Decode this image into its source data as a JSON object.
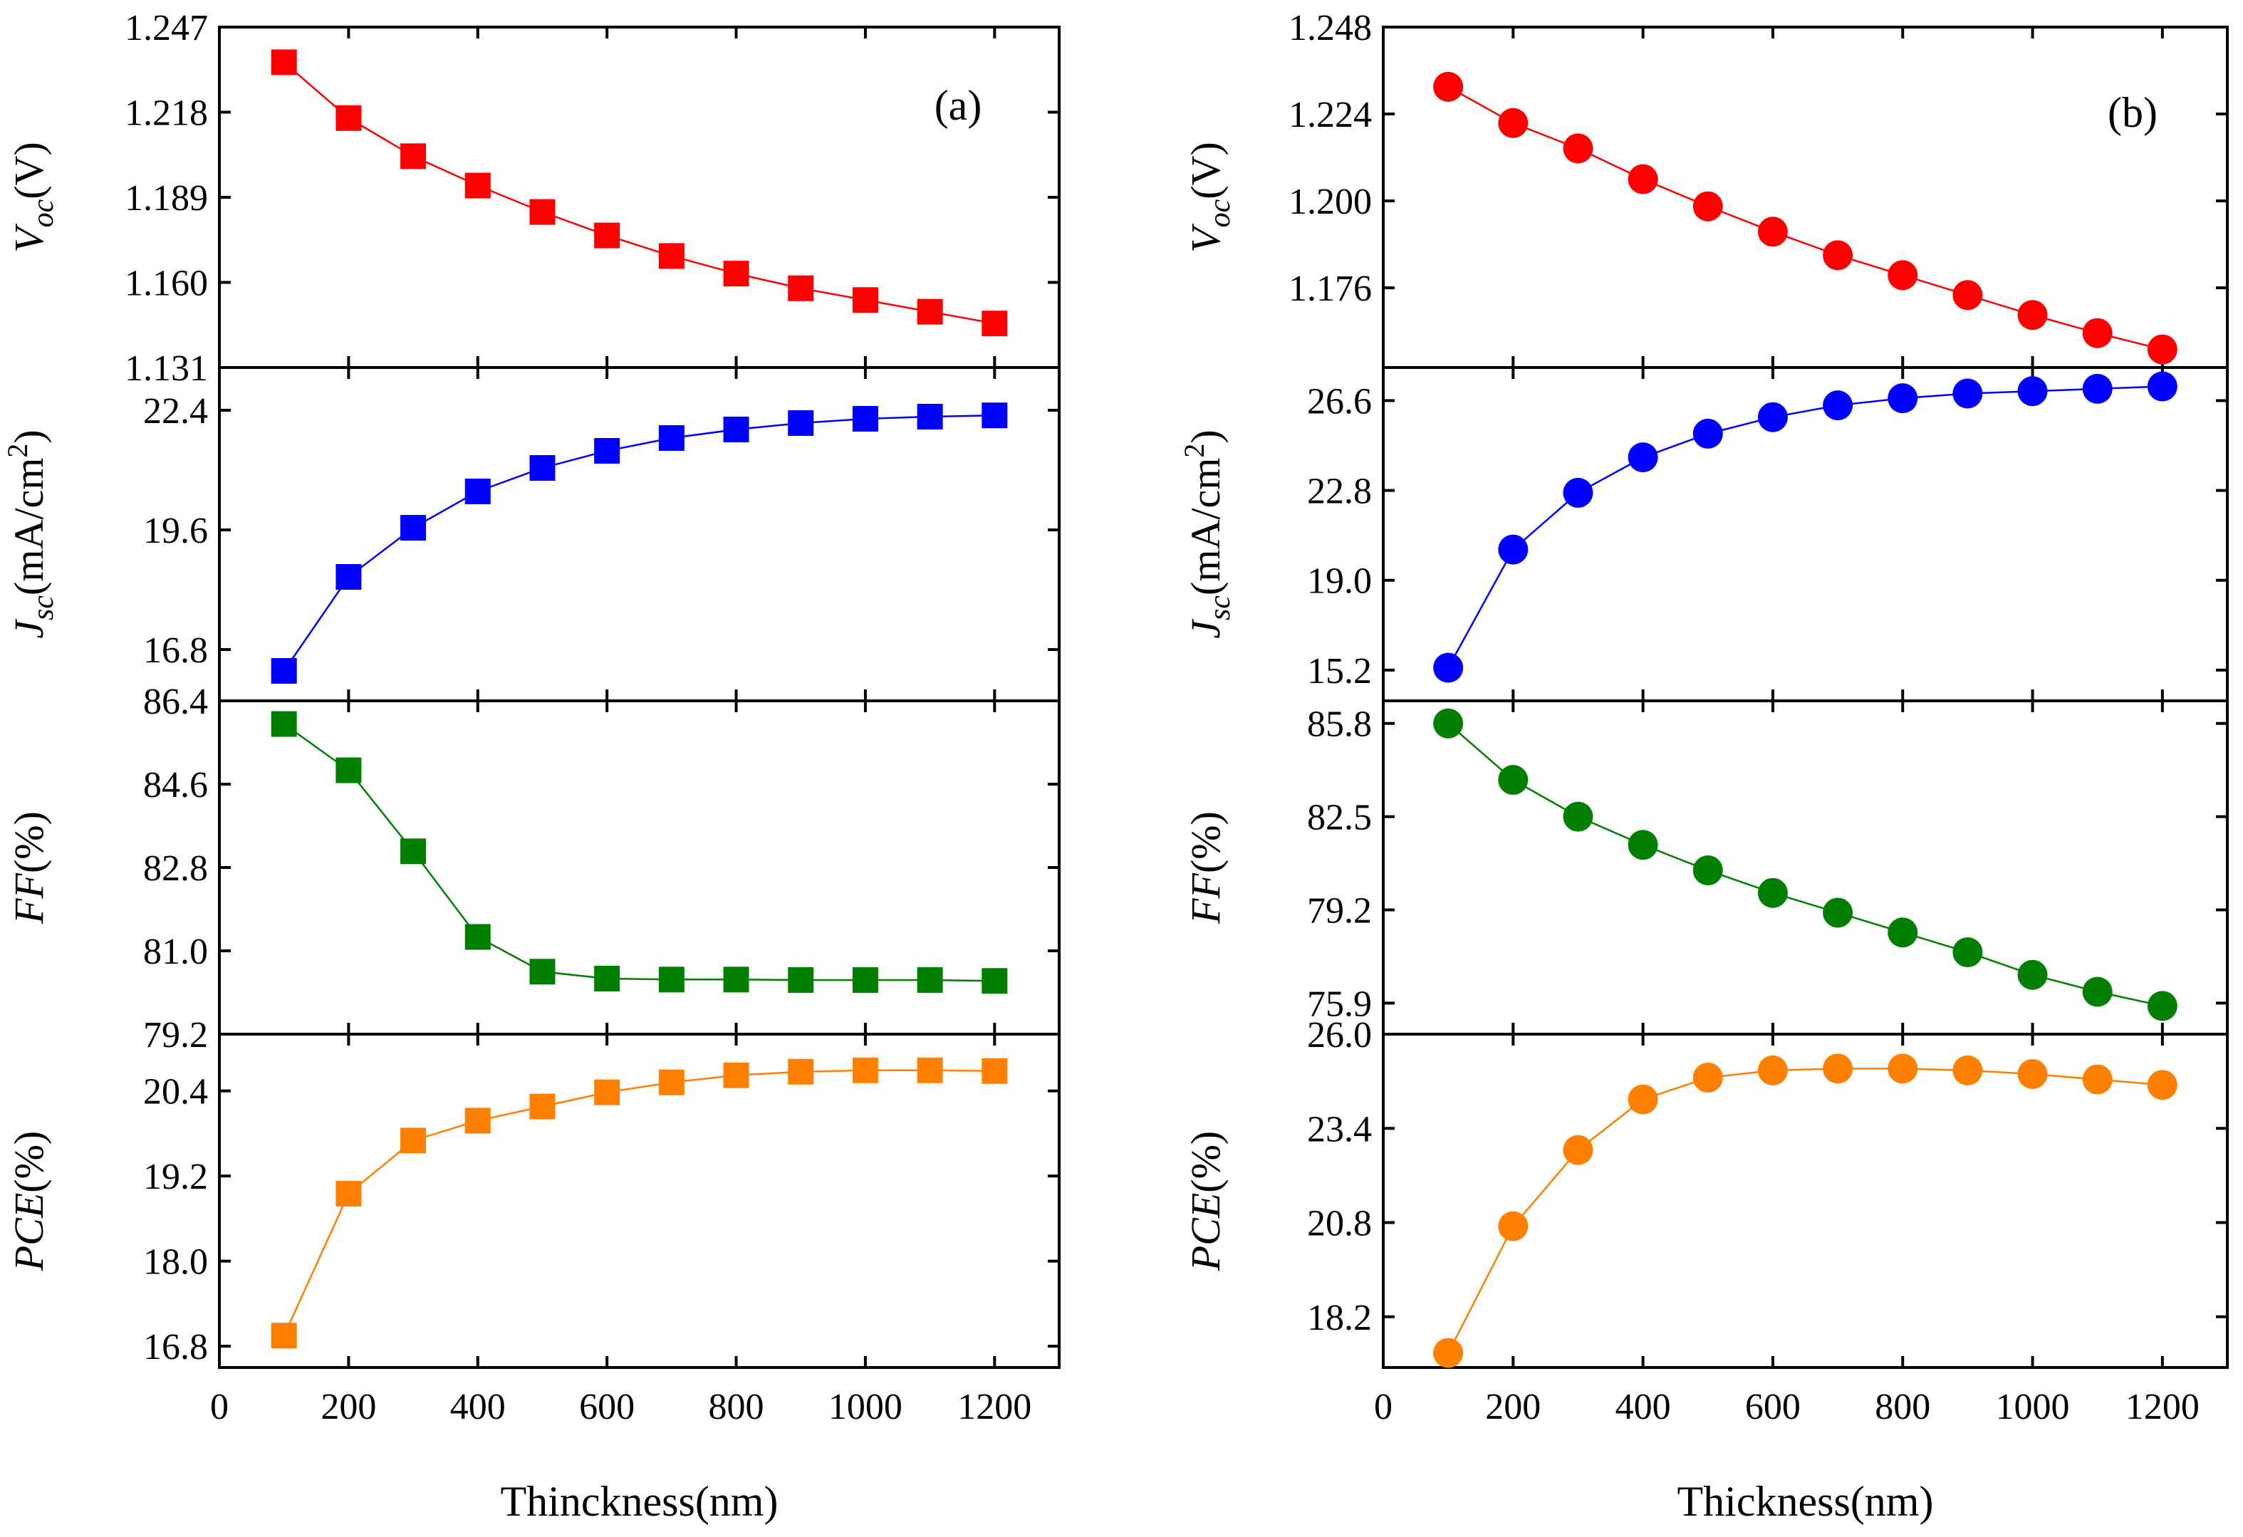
{
  "x_ticks": [
    "0",
    "200",
    "400",
    "600",
    "800",
    "1000",
    "1200"
  ],
  "x_tick_values": [
    0,
    200,
    400,
    600,
    800,
    1000,
    1200
  ],
  "chart_data": [
    {
      "panel": "(a)",
      "type": "line",
      "marker": "square",
      "xlabel": "Thinckness(nm)",
      "xlim": [
        0,
        1300
      ],
      "x": [
        100,
        200,
        300,
        400,
        500,
        600,
        700,
        800,
        900,
        1000,
        1100,
        1200
      ],
      "subplots": [
        {
          "ylabel_main": "V",
          "ylabel_sub": "oc",
          "ylabel_unit": "(V)",
          "color": "#ff0000",
          "ylim": [
            1.131,
            1.247
          ],
          "yticks": [
            "1.247",
            "1.218",
            "1.189",
            "1.160",
            "1.131"
          ],
          "ytick_values": [
            1.247,
            1.218,
            1.189,
            1.16,
            1.131
          ],
          "values": [
            1.235,
            1.216,
            1.203,
            1.193,
            1.184,
            1.176,
            1.169,
            1.163,
            1.158,
            1.154,
            1.15,
            1.146
          ]
        },
        {
          "ylabel_main": "J",
          "ylabel_sub": "sc",
          "ylabel_unit": "(mA/cm",
          "ylabel_sup": "2",
          "ylabel_tail": ")",
          "color": "#0000ff",
          "ylim": [
            15.6,
            23.4
          ],
          "yticks": [
            "22.4",
            "19.6",
            "16.8"
          ],
          "ytick_values": [
            22.4,
            19.6,
            16.8
          ],
          "values": [
            16.3,
            18.5,
            19.65,
            20.5,
            21.05,
            21.45,
            21.75,
            21.95,
            22.1,
            22.2,
            22.25,
            22.28
          ]
        },
        {
          "ylabel_main": "FF",
          "ylabel_sub": "",
          "ylabel_unit": "(%)",
          "color": "#007f00",
          "ylim": [
            79.2,
            86.4
          ],
          "yticks": [
            "86.4",
            "84.6",
            "82.8",
            "81.0",
            "79.2"
          ],
          "ytick_values": [
            86.4,
            84.6,
            82.8,
            81.0,
            79.2
          ],
          "values": [
            85.9,
            84.9,
            83.15,
            81.3,
            80.55,
            80.4,
            80.38,
            80.38,
            80.37,
            80.37,
            80.37,
            80.35
          ]
        },
        {
          "ylabel_main": "PCE",
          "ylabel_sub": "",
          "ylabel_unit": "(%)",
          "color": "#ff8000",
          "ylim": [
            16.5,
            21.2
          ],
          "yticks": [
            "20.4",
            "19.2",
            "18.0",
            "16.8"
          ],
          "ytick_values": [
            20.4,
            19.2,
            18.0,
            16.8
          ],
          "values": [
            16.95,
            18.95,
            19.7,
            19.98,
            20.18,
            20.38,
            20.52,
            20.62,
            20.67,
            20.69,
            20.69,
            20.68
          ]
        }
      ]
    },
    {
      "panel": "(b)",
      "type": "line",
      "marker": "circle",
      "xlabel": "Thickness(nm)",
      "xlim": [
        0,
        1300
      ],
      "x": [
        100,
        200,
        300,
        400,
        500,
        600,
        700,
        800,
        900,
        1000,
        1100,
        1200
      ],
      "subplots": [
        {
          "ylabel_main": "V",
          "ylabel_sub": "oc",
          "ylabel_unit": "(V)",
          "color": "#ff0000",
          "ylim": [
            1.154,
            1.248
          ],
          "yticks": [
            "1.248",
            "1.224",
            "1.200",
            "1.176"
          ],
          "ytick_values": [
            1.248,
            1.224,
            1.2,
            1.176
          ],
          "values": [
            1.2315,
            1.2215,
            1.2145,
            1.206,
            1.1985,
            1.1915,
            1.185,
            1.1795,
            1.174,
            1.1685,
            1.1635,
            1.159
          ]
        },
        {
          "ylabel_main": "J",
          "ylabel_sub": "sc",
          "ylabel_unit": "(mA/cm",
          "ylabel_sup": "2",
          "ylabel_tail": ")",
          "color": "#0000ff",
          "ylim": [
            13.9,
            28.0
          ],
          "yticks": [
            "26.6",
            "22.8",
            "19.0",
            "15.2"
          ],
          "ytick_values": [
            26.6,
            22.8,
            19.0,
            15.2
          ],
          "values": [
            15.3,
            20.3,
            22.7,
            24.2,
            25.2,
            25.9,
            26.4,
            26.7,
            26.9,
            27.0,
            27.1,
            27.2
          ]
        },
        {
          "ylabel_main": "FF",
          "ylabel_sub": "",
          "ylabel_unit": "(%)",
          "color": "#007f00",
          "ylim": [
            74.8,
            86.6
          ],
          "yticks": [
            "85.8",
            "82.5",
            "79.2",
            "75.9"
          ],
          "ytick_values": [
            85.8,
            82.5,
            79.2,
            75.9
          ],
          "values": [
            85.8,
            83.8,
            82.5,
            81.5,
            80.6,
            79.8,
            79.1,
            78.4,
            77.7,
            76.9,
            76.3,
            75.8
          ]
        },
        {
          "ylabel_main": "PCE",
          "ylabel_sub": "",
          "ylabel_unit": "(%)",
          "color": "#ff8000",
          "ylim": [
            16.8,
            26.0
          ],
          "yticks": [
            "26.0",
            "23.4",
            "20.8",
            "18.2"
          ],
          "ytick_values": [
            26.0,
            23.4,
            20.8,
            18.2
          ],
          "values": [
            17.2,
            20.7,
            22.8,
            24.2,
            24.8,
            25.0,
            25.05,
            25.05,
            25.0,
            24.9,
            24.75,
            24.6
          ]
        }
      ]
    }
  ]
}
